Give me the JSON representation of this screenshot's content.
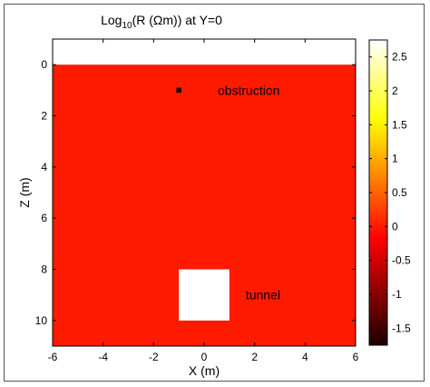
{
  "chart_data": {
    "type": "heatmap",
    "title": "Log10(R (Ωm)) at Y=0",
    "title_parts": {
      "prefix": "Log",
      "subscript": "10",
      "suffix": "(R (Ωm)) at Y=0"
    },
    "xlabel": "X (m)",
    "ylabel": "Z (m)",
    "xlim": [
      -6,
      6
    ],
    "ylim": [
      -1,
      11
    ],
    "y_reversed": true,
    "x_ticks": [
      -6,
      -4,
      -2,
      0,
      2,
      4,
      6
    ],
    "y_ticks": [
      0,
      2,
      4,
      6,
      8,
      10
    ],
    "background_value": 0,
    "model_region": {
      "x": [
        -6,
        6
      ],
      "z": [
        0,
        11
      ]
    },
    "features": [
      {
        "name": "obstruction",
        "label": "obstruction",
        "x": [
          -1.1,
          -0.9
        ],
        "z": [
          0.9,
          1.1
        ],
        "color": "#111111"
      },
      {
        "name": "tunnel",
        "label": "tunnel",
        "x": [
          -1,
          1
        ],
        "z": [
          8,
          10
        ],
        "color": "#ffffff"
      }
    ],
    "colorbar": {
      "range": [
        -1.75,
        2.75
      ],
      "ticks": [
        -1.5,
        -1,
        -0.5,
        0,
        0.5,
        1,
        1.5,
        2,
        2.5
      ],
      "colormap": "hot"
    },
    "colors": {
      "background_fill": "#ff1a00",
      "air": "#ffffff",
      "frame": "#555555"
    }
  }
}
